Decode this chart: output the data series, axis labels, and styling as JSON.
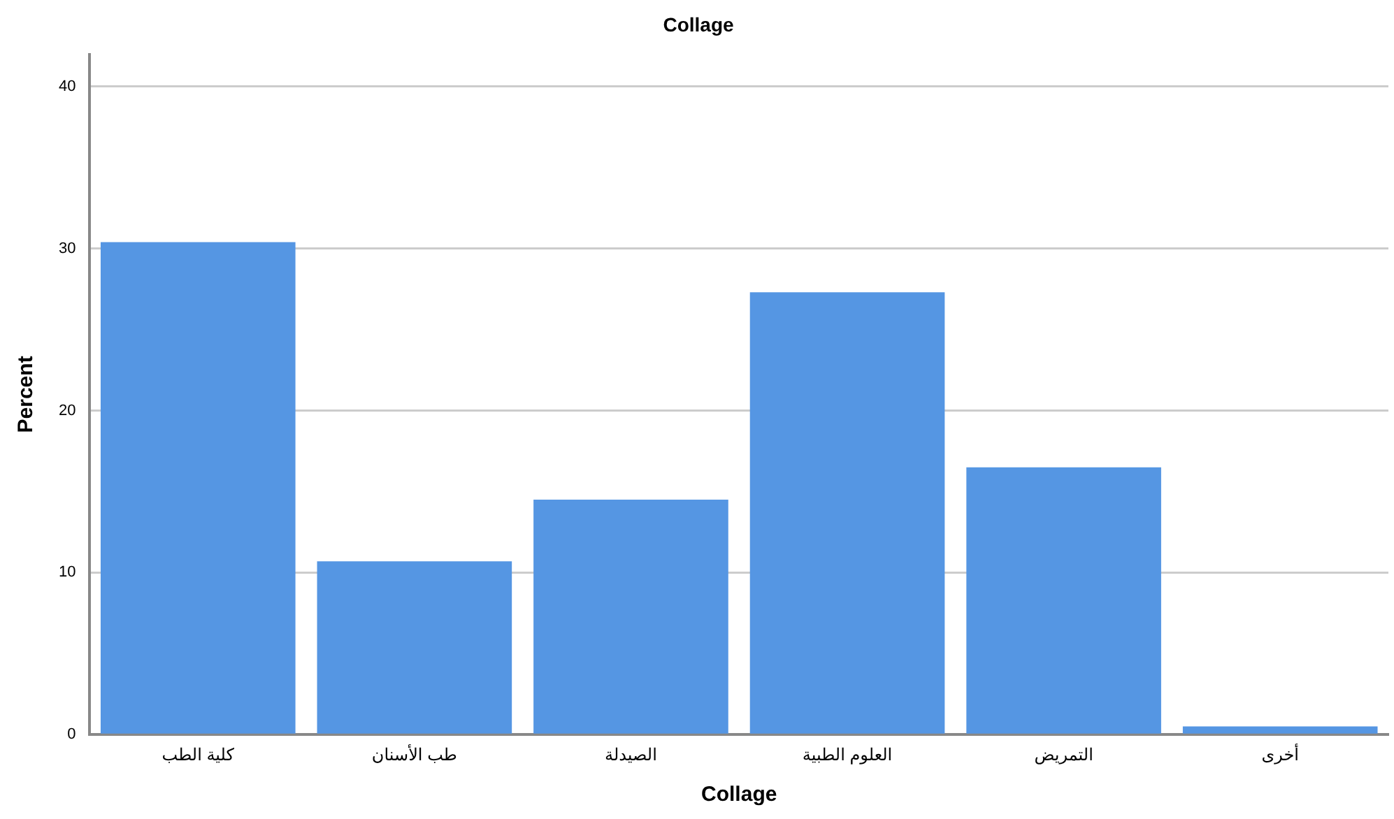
{
  "chart_data": {
    "type": "bar",
    "title": "Collage",
    "xlabel": "Collage",
    "ylabel": "Percent",
    "categories": [
      "كلية الطب",
      "طب الأسنان",
      "الصيدلة",
      "العلوم الطبية",
      "التمريض",
      "أخرى"
    ],
    "values": [
      30.4,
      10.7,
      14.5,
      27.3,
      16.5,
      0.5
    ],
    "color": "#5596e3",
    "ylim": [
      0,
      42
    ],
    "yticks": [
      0,
      10,
      20,
      30,
      40
    ],
    "grid": "y",
    "legend": false
  }
}
